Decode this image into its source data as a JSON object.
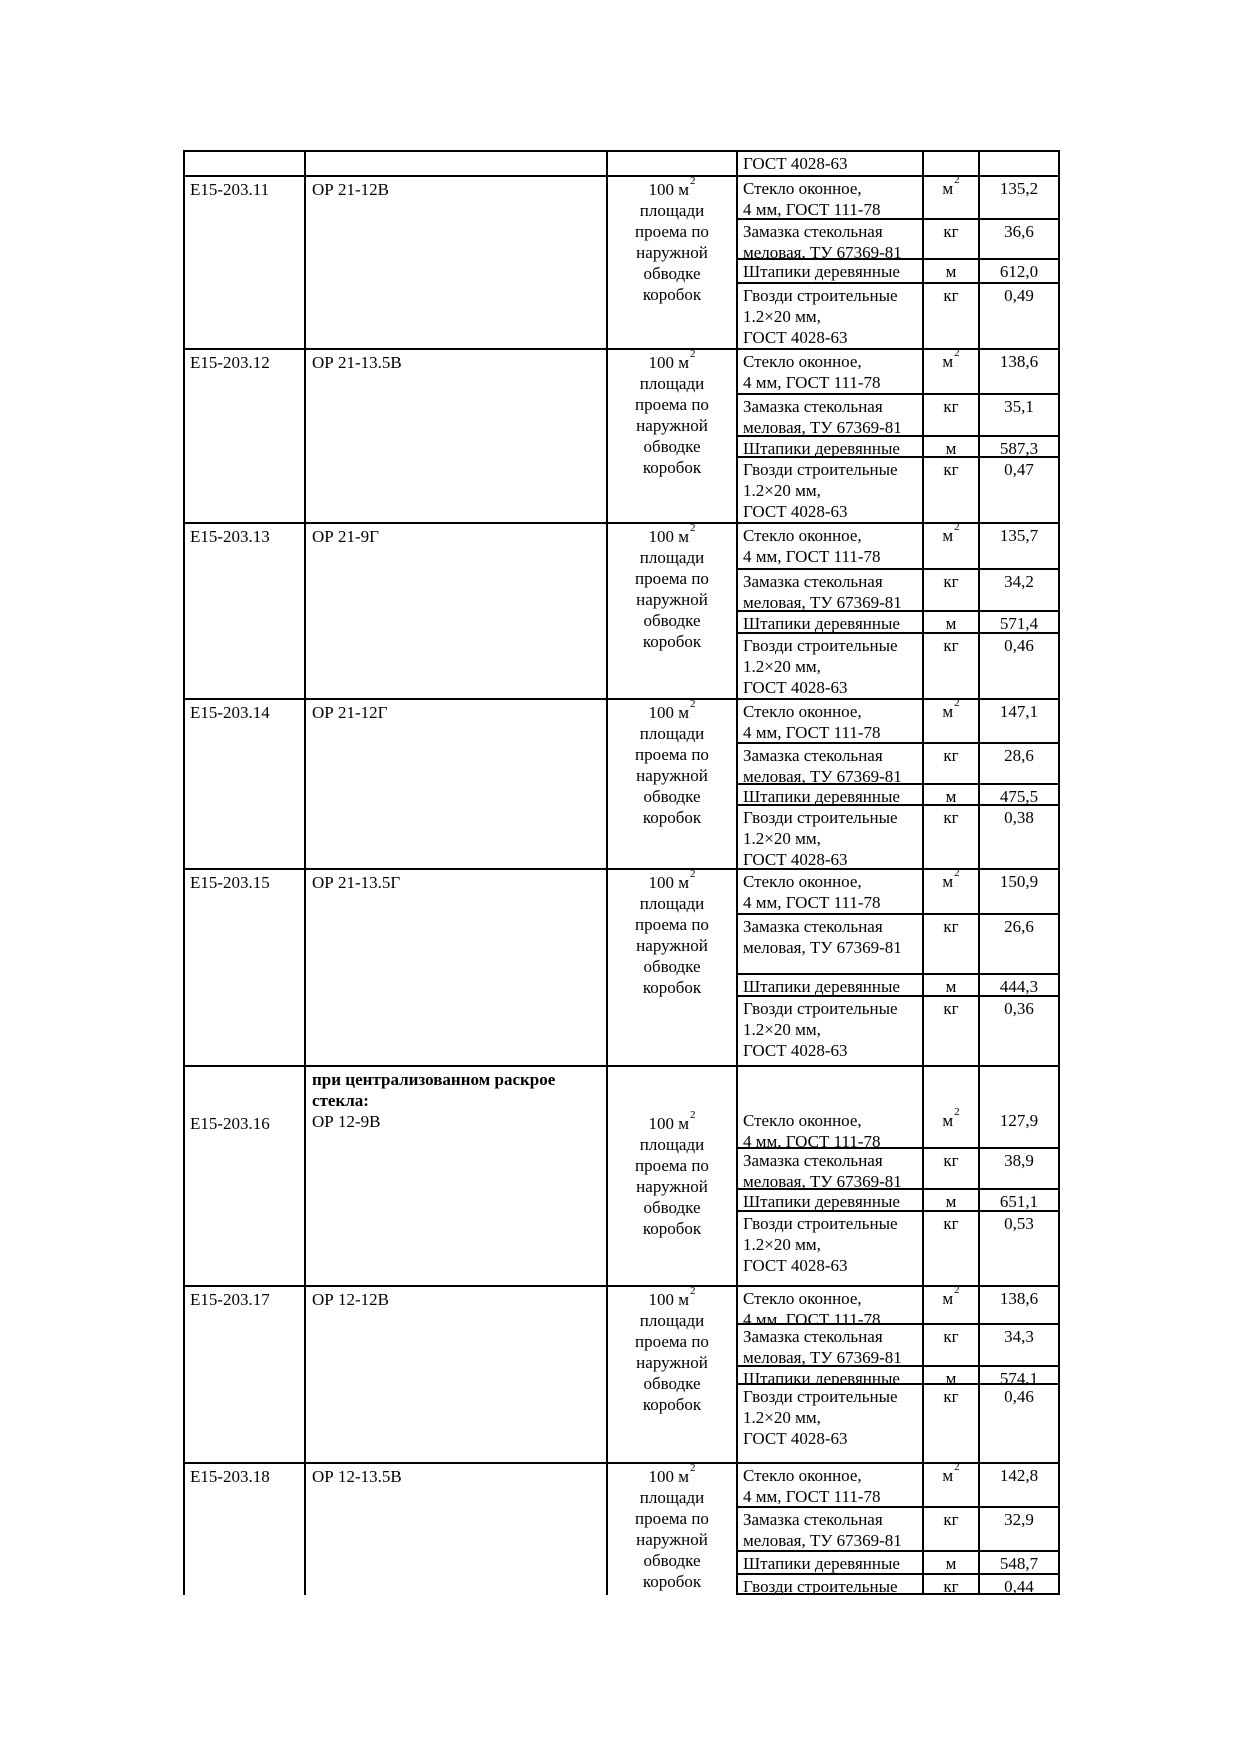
{
  "page": {
    "background": "#ffffff",
    "text_color": "#000000",
    "border_color": "#000000"
  },
  "table": {
    "unit_description_lines": [
      "100 м²",
      "площади",
      "проема по",
      "наружной",
      "обводке",
      "коробок"
    ],
    "rows": [
      {
        "type": "continuation",
        "code": "",
        "name": "",
        "materials": [
          {
            "name": [
              "ГОСТ 4028-63"
            ],
            "unit": "",
            "qty": ""
          }
        ]
      },
      {
        "code": "Е15-203.11",
        "name": "ОР 21-12В",
        "materials": [
          {
            "name": [
              "Стекло оконное,",
              "4 мм, ГОСТ 111-78"
            ],
            "unit": "м²",
            "qty": "135,2"
          },
          {
            "name": [
              "Замазка стекольная",
              "меловая, ТУ 67369-81"
            ],
            "unit": "кг",
            "qty": "36,6"
          },
          {
            "name": [
              "Штапики деревянные"
            ],
            "unit": "м",
            "qty": "612,0"
          },
          {
            "name": [
              "Гвозди строительные",
              "1.2×20 мм,",
              "ГОСТ 4028-63"
            ],
            "unit": "кг",
            "qty": "0,49"
          }
        ]
      },
      {
        "code": "Е15-203.12",
        "name": "ОР 21-13.5В",
        "materials": [
          {
            "name": [
              "Стекло оконное,",
              "4 мм, ГОСТ 111-78"
            ],
            "unit": "м²",
            "qty": "138,6"
          },
          {
            "name": [
              "Замазка стекольная",
              "меловая, ТУ 67369-81"
            ],
            "unit": "кг",
            "qty": "35,1"
          },
          {
            "name": [
              "Штапики деревянные"
            ],
            "unit": "м",
            "qty": "587,3"
          },
          {
            "name": [
              "Гвозди строительные",
              "1.2×20 мм,",
              "ГОСТ 4028-63"
            ],
            "unit": "кг",
            "qty": "0,47"
          }
        ]
      },
      {
        "code": "Е15-203.13",
        "name": "ОР 21-9Г",
        "materials": [
          {
            "name": [
              "Стекло оконное,",
              "4 мм, ГОСТ 111-78"
            ],
            "unit": "м²",
            "qty": "135,7"
          },
          {
            "name": [
              "Замазка стекольная",
              "меловая, ТУ 67369-81"
            ],
            "unit": "кг",
            "qty": "34,2"
          },
          {
            "name": [
              "Штапики деревянные"
            ],
            "unit": "м",
            "qty": "571,4"
          },
          {
            "name": [
              "Гвозди строительные",
              "1.2×20 мм,",
              "ГОСТ 4028-63"
            ],
            "unit": "кг",
            "qty": "0,46"
          }
        ]
      },
      {
        "code": "Е15-203.14",
        "name": "ОР 21-12Г",
        "materials": [
          {
            "name": [
              "Стекло оконное,",
              "4 мм, ГОСТ 111-78"
            ],
            "unit": "м²",
            "qty": "147,1"
          },
          {
            "name": [
              "Замазка стекольная",
              "меловая, ТУ 67369-81"
            ],
            "unit": "кг",
            "qty": "28,6"
          },
          {
            "name": [
              "Штапики деревянные"
            ],
            "unit": "м",
            "qty": "475,5"
          },
          {
            "name": [
              "Гвозди строительные",
              "1.2×20 мм,",
              "ГОСТ 4028-63"
            ],
            "unit": "кг",
            "qty": "0,38"
          }
        ]
      },
      {
        "code": "Е15-203.15",
        "name": "ОР 21-13.5Г",
        "materials": [
          {
            "name": [
              "Стекло оконное,",
              "4 мм, ГОСТ 111-78"
            ],
            "unit": "м²",
            "qty": "150,9"
          },
          {
            "name": [
              "Замазка стекольная",
              "меловая, ТУ 67369-81"
            ],
            "unit": "кг",
            "qty": "26,6"
          },
          {
            "name": [
              "Штапики деревянные"
            ],
            "unit": "м",
            "qty": "444,3"
          },
          {
            "name": [
              "Гвозди строительные",
              "1.2×20 мм,",
              "ГОСТ 4028-63"
            ],
            "unit": "кг",
            "qty": "0,36"
          }
        ]
      },
      {
        "code": "Е15-203.16",
        "name": "ОР 12-9В",
        "group_header": "при централизованном раскрое стекла:",
        "materials": [
          {
            "name": [
              "Стекло оконное,",
              "4 мм, ГОСТ 111-78"
            ],
            "unit": "м²",
            "qty": "127,9"
          },
          {
            "name": [
              "Замазка стекольная",
              "меловая, ТУ 67369-81"
            ],
            "unit": "кг",
            "qty": "38,9"
          },
          {
            "name": [
              "Штапики деревянные"
            ],
            "unit": "м",
            "qty": "651,1"
          },
          {
            "name": [
              "Гвозди строительные",
              "1.2×20 мм,",
              "ГОСТ 4028-63"
            ],
            "unit": "кг",
            "qty": "0,53"
          }
        ]
      },
      {
        "code": "Е15-203.17",
        "name": "ОР 12-12В",
        "materials": [
          {
            "name": [
              "Стекло оконное,",
              "4 мм, ГОСТ 111-78"
            ],
            "unit": "м²",
            "qty": "138,6"
          },
          {
            "name": [
              "Замазка стекольная",
              "меловая, ТУ 67369-81"
            ],
            "unit": "кг",
            "qty": "34,3"
          },
          {
            "name": [
              "Штапики деревянные"
            ],
            "unit": "м",
            "qty": "574,1"
          },
          {
            "name": [
              "Гвозди строительные",
              "1.2×20 мм,",
              "ГОСТ 4028-63"
            ],
            "unit": "кг",
            "qty": "0,46"
          }
        ]
      },
      {
        "code": "Е15-203.18",
        "name": "ОР 12-13.5В",
        "truncated": true,
        "materials": [
          {
            "name": [
              "Стекло оконное,",
              "4 мм, ГОСТ 111-78"
            ],
            "unit": "м²",
            "qty": "142,8"
          },
          {
            "name": [
              "Замазка стекольная",
              "меловая, ТУ 67369-81"
            ],
            "unit": "кг",
            "qty": "32,9"
          },
          {
            "name": [
              "Штапики деревянные"
            ],
            "unit": "м",
            "qty": "548,7"
          },
          {
            "name": [
              "Гвозди строительные"
            ],
            "unit": "кг",
            "qty": "0,44"
          }
        ]
      }
    ]
  }
}
